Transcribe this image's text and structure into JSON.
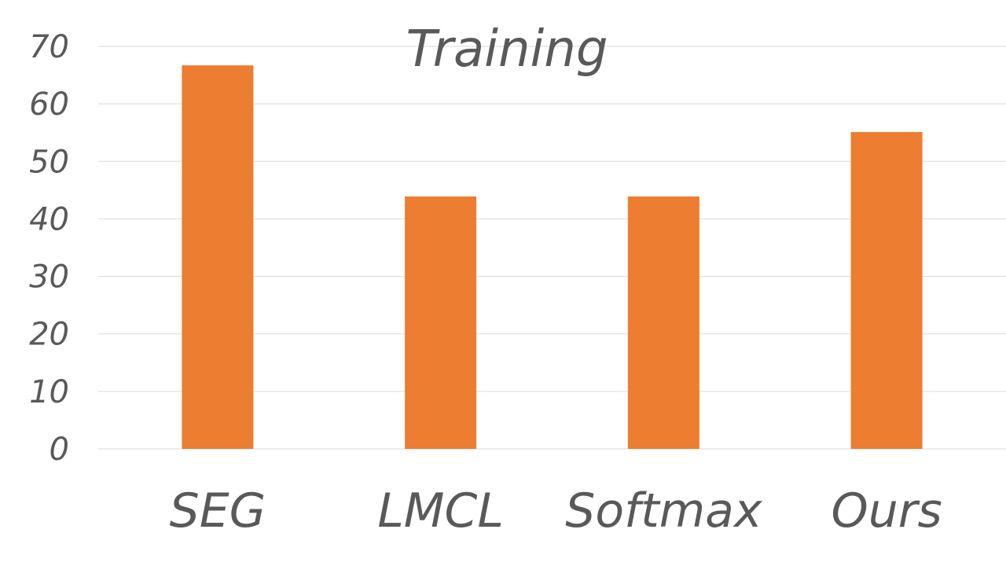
{
  "chart_data": {
    "type": "bar",
    "title": "Training",
    "xlabel": "",
    "ylabel": "",
    "categories": [
      "SEG",
      "LMCL",
      "Softmax",
      "Ours"
    ],
    "values": [
      66.7,
      43.9,
      43.9,
      55.1
    ],
    "ylim": [
      0,
      70
    ],
    "yticks": [
      "0",
      "10",
      "20",
      "30",
      "40",
      "50",
      "60",
      "70"
    ],
    "grid": true,
    "legend": "none",
    "bar_color": "#ed7d31",
    "text_color": "#595959",
    "grid_color": "#d9d9d9"
  }
}
